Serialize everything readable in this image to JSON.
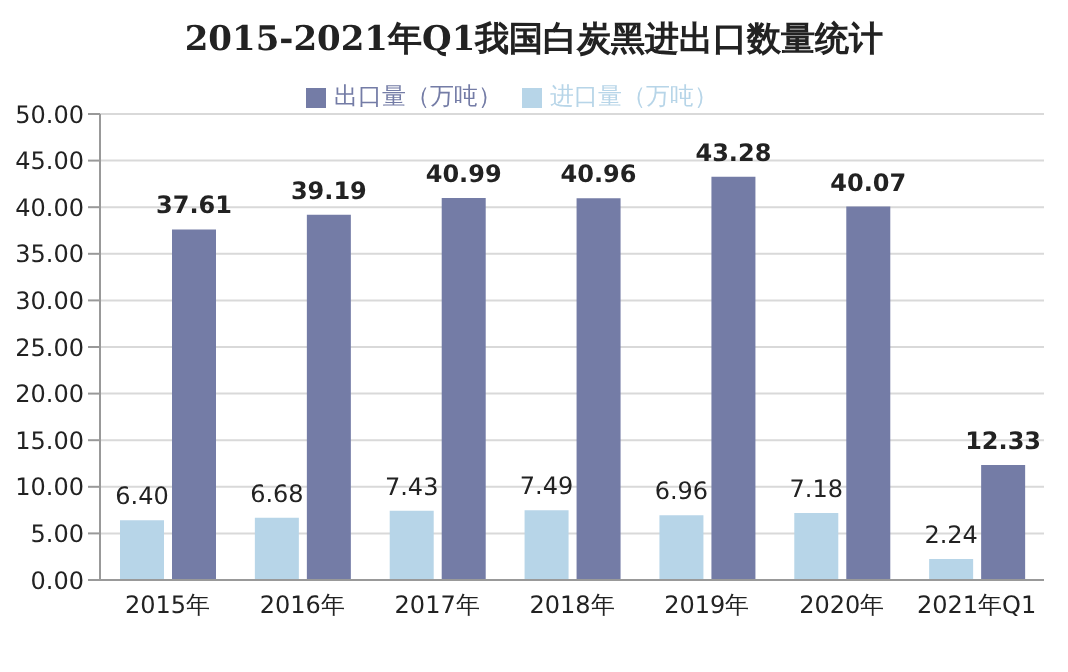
{
  "chart_data": {
    "type": "bar",
    "title": "2015-2021年Q1我国白炭黑进出口数量统计",
    "categories": [
      "2015年",
      "2016年",
      "2017年",
      "2018年",
      "2019年",
      "2020年",
      "2021年Q1"
    ],
    "series": [
      {
        "name": "进口量（万吨）",
        "color": "#b7d5e8",
        "values": [
          6.4,
          6.68,
          7.43,
          7.49,
          6.96,
          7.18,
          2.24
        ],
        "value_labels": [
          "6.40",
          "6.68",
          "7.43",
          "7.49",
          "6.96",
          "7.18",
          "2.24"
        ]
      },
      {
        "name": "出口量（万吨）",
        "color": "#747ca6",
        "values": [
          37.61,
          39.19,
          40.99,
          40.96,
          43.28,
          40.07,
          12.33
        ],
        "value_labels": [
          "37.61",
          "39.19",
          "40.99",
          "40.96",
          "43.28",
          "40.07",
          "12.33"
        ]
      }
    ],
    "ylim": [
      0,
      50
    ],
    "yticks": [
      {
        "value": 0,
        "label": "0.00"
      },
      {
        "value": 5,
        "label": "5.00"
      },
      {
        "value": 10,
        "label": "10.00"
      },
      {
        "value": 15,
        "label": "15.00"
      },
      {
        "value": 20,
        "label": "20.00"
      },
      {
        "value": 25,
        "label": "25.00"
      },
      {
        "value": 30,
        "label": "30.00"
      },
      {
        "value": 35,
        "label": "35.00"
      },
      {
        "value": 40,
        "label": "40.00"
      },
      {
        "value": 45,
        "label": "45.00"
      },
      {
        "value": 50,
        "label": "50.00"
      }
    ],
    "grid": "y",
    "legend": "top"
  }
}
